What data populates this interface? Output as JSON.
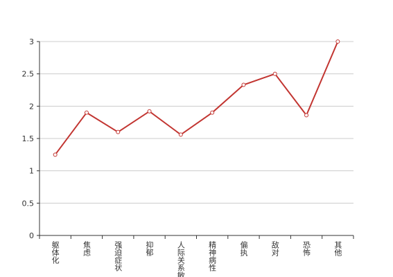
{
  "chart_data": {
    "type": "line",
    "categories": [
      "躯体化",
      "焦虑",
      "强迫症状",
      "抑郁",
      "人际关系敏感",
      "精神病性",
      "偏执",
      "敌对",
      "恐怖",
      "其他"
    ],
    "series": [
      {
        "color": "#c23531",
        "values": [
          1.25,
          1.9,
          1.6,
          1.92,
          1.56,
          1.9,
          2.33,
          2.5,
          1.86,
          3
        ]
      }
    ],
    "ylim": [
      0,
      3
    ],
    "yticks": [
      0,
      0.5,
      1,
      1.5,
      2,
      2.5,
      3
    ],
    "grid": true
  }
}
